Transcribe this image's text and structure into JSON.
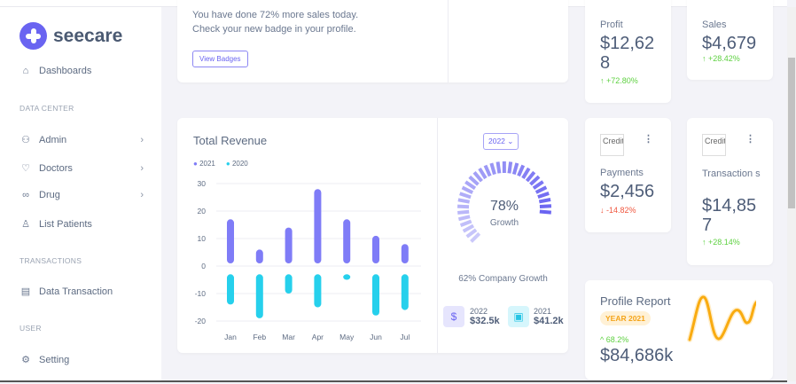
{
  "brand": {
    "name": "seecare"
  },
  "sidebar": {
    "dashboards": "Dashboards",
    "sections": {
      "data_center": "DATA CENTER",
      "transactions": "TRANSACTIONS",
      "user": "USER"
    },
    "items": [
      {
        "label": "Admin",
        "icon": "user-group-icon"
      },
      {
        "label": "Doctors",
        "icon": "heart-icon"
      },
      {
        "label": "Drug",
        "icon": "link-icon"
      },
      {
        "label": "List Patients",
        "icon": "user-icon"
      },
      {
        "label": "Data Transaction",
        "icon": "document-icon"
      },
      {
        "label": "Setting",
        "icon": "gear-icon"
      }
    ]
  },
  "welcome": {
    "line1": "You have done 72% more sales today.",
    "line2": "Check your new badge in your profile.",
    "button": "View Badges"
  },
  "revenue": {
    "title": "Total Revenue",
    "year_select": "2022",
    "gauge_value": "78%",
    "gauge_label": "Growth",
    "company_growth": "62% Company Growth",
    "summary": [
      {
        "year": "2022",
        "amount": "$32.5k"
      },
      {
        "year": "2021",
        "amount": "$41.2k"
      }
    ]
  },
  "chart_data": {
    "type": "bar",
    "title": "Total Revenue",
    "categories": [
      "Jan",
      "Feb",
      "Mar",
      "Apr",
      "May",
      "Jun",
      "Jul"
    ],
    "series": [
      {
        "name": "2021",
        "color": "#7f7cf7",
        "values": [
          17,
          6,
          14,
          28,
          17,
          11,
          8
        ]
      },
      {
        "name": "2020",
        "color": "#26d0ec",
        "values": [
          -14,
          -19,
          -10,
          -15,
          -5,
          -18,
          -16
        ]
      }
    ],
    "yticks": [
      "30",
      "20",
      "10",
      "0",
      "-10",
      "-20"
    ],
    "ylim": [
      -20,
      30
    ],
    "gauge_percent": 78
  },
  "stats": {
    "profit": {
      "label": "Profit",
      "value": "$12,62 8",
      "change": "+72.80%"
    },
    "sales": {
      "label": "Sales",
      "value": "$4,679",
      "change": "+28.42%"
    },
    "payments": {
      "label": "Payments",
      "value": "$2,456",
      "change": "-14.82%",
      "img_alt": "Credit"
    },
    "transactions": {
      "label": "Transaction s",
      "value": "$14,85 7",
      "change": "+28.14%",
      "img_alt": "Credit"
    }
  },
  "profile": {
    "title": "Profile Report",
    "badge": "YEAR 2021",
    "change": "68.2%",
    "value": "$84,686k"
  }
}
